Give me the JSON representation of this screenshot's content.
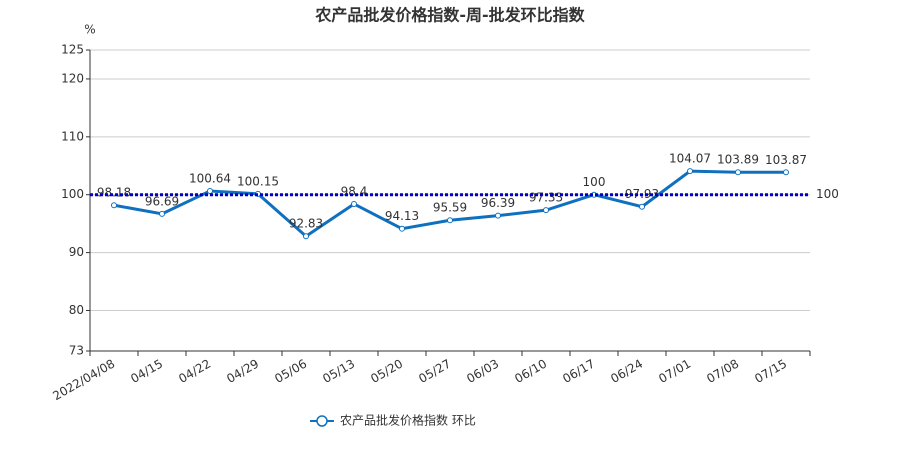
{
  "chart_data": {
    "type": "line",
    "title": "农产品批发价格指数-周-批发环比指数",
    "y_unit": "%",
    "categories": [
      "2022/04/08",
      "04/15",
      "04/22",
      "04/29",
      "05/06",
      "05/13",
      "05/20",
      "05/27",
      "06/03",
      "06/10",
      "06/17",
      "06/24",
      "07/01",
      "07/08",
      "07/15"
    ],
    "series": [
      {
        "name": "农产品批发价格指数  环比",
        "color": "#1070c0",
        "values": [
          98.18,
          96.69,
          100.64,
          100.15,
          92.83,
          98.4,
          94.13,
          95.59,
          96.39,
          97.33,
          100,
          97.93,
          104.07,
          103.89,
          103.87
        ]
      }
    ],
    "ylim": [
      73,
      125
    ],
    "yticks": [
      73,
      80,
      90,
      100,
      110,
      120,
      125
    ],
    "grid": true,
    "reference_line": {
      "value": 100,
      "color": "#0000cc"
    },
    "legend": "bottom"
  }
}
